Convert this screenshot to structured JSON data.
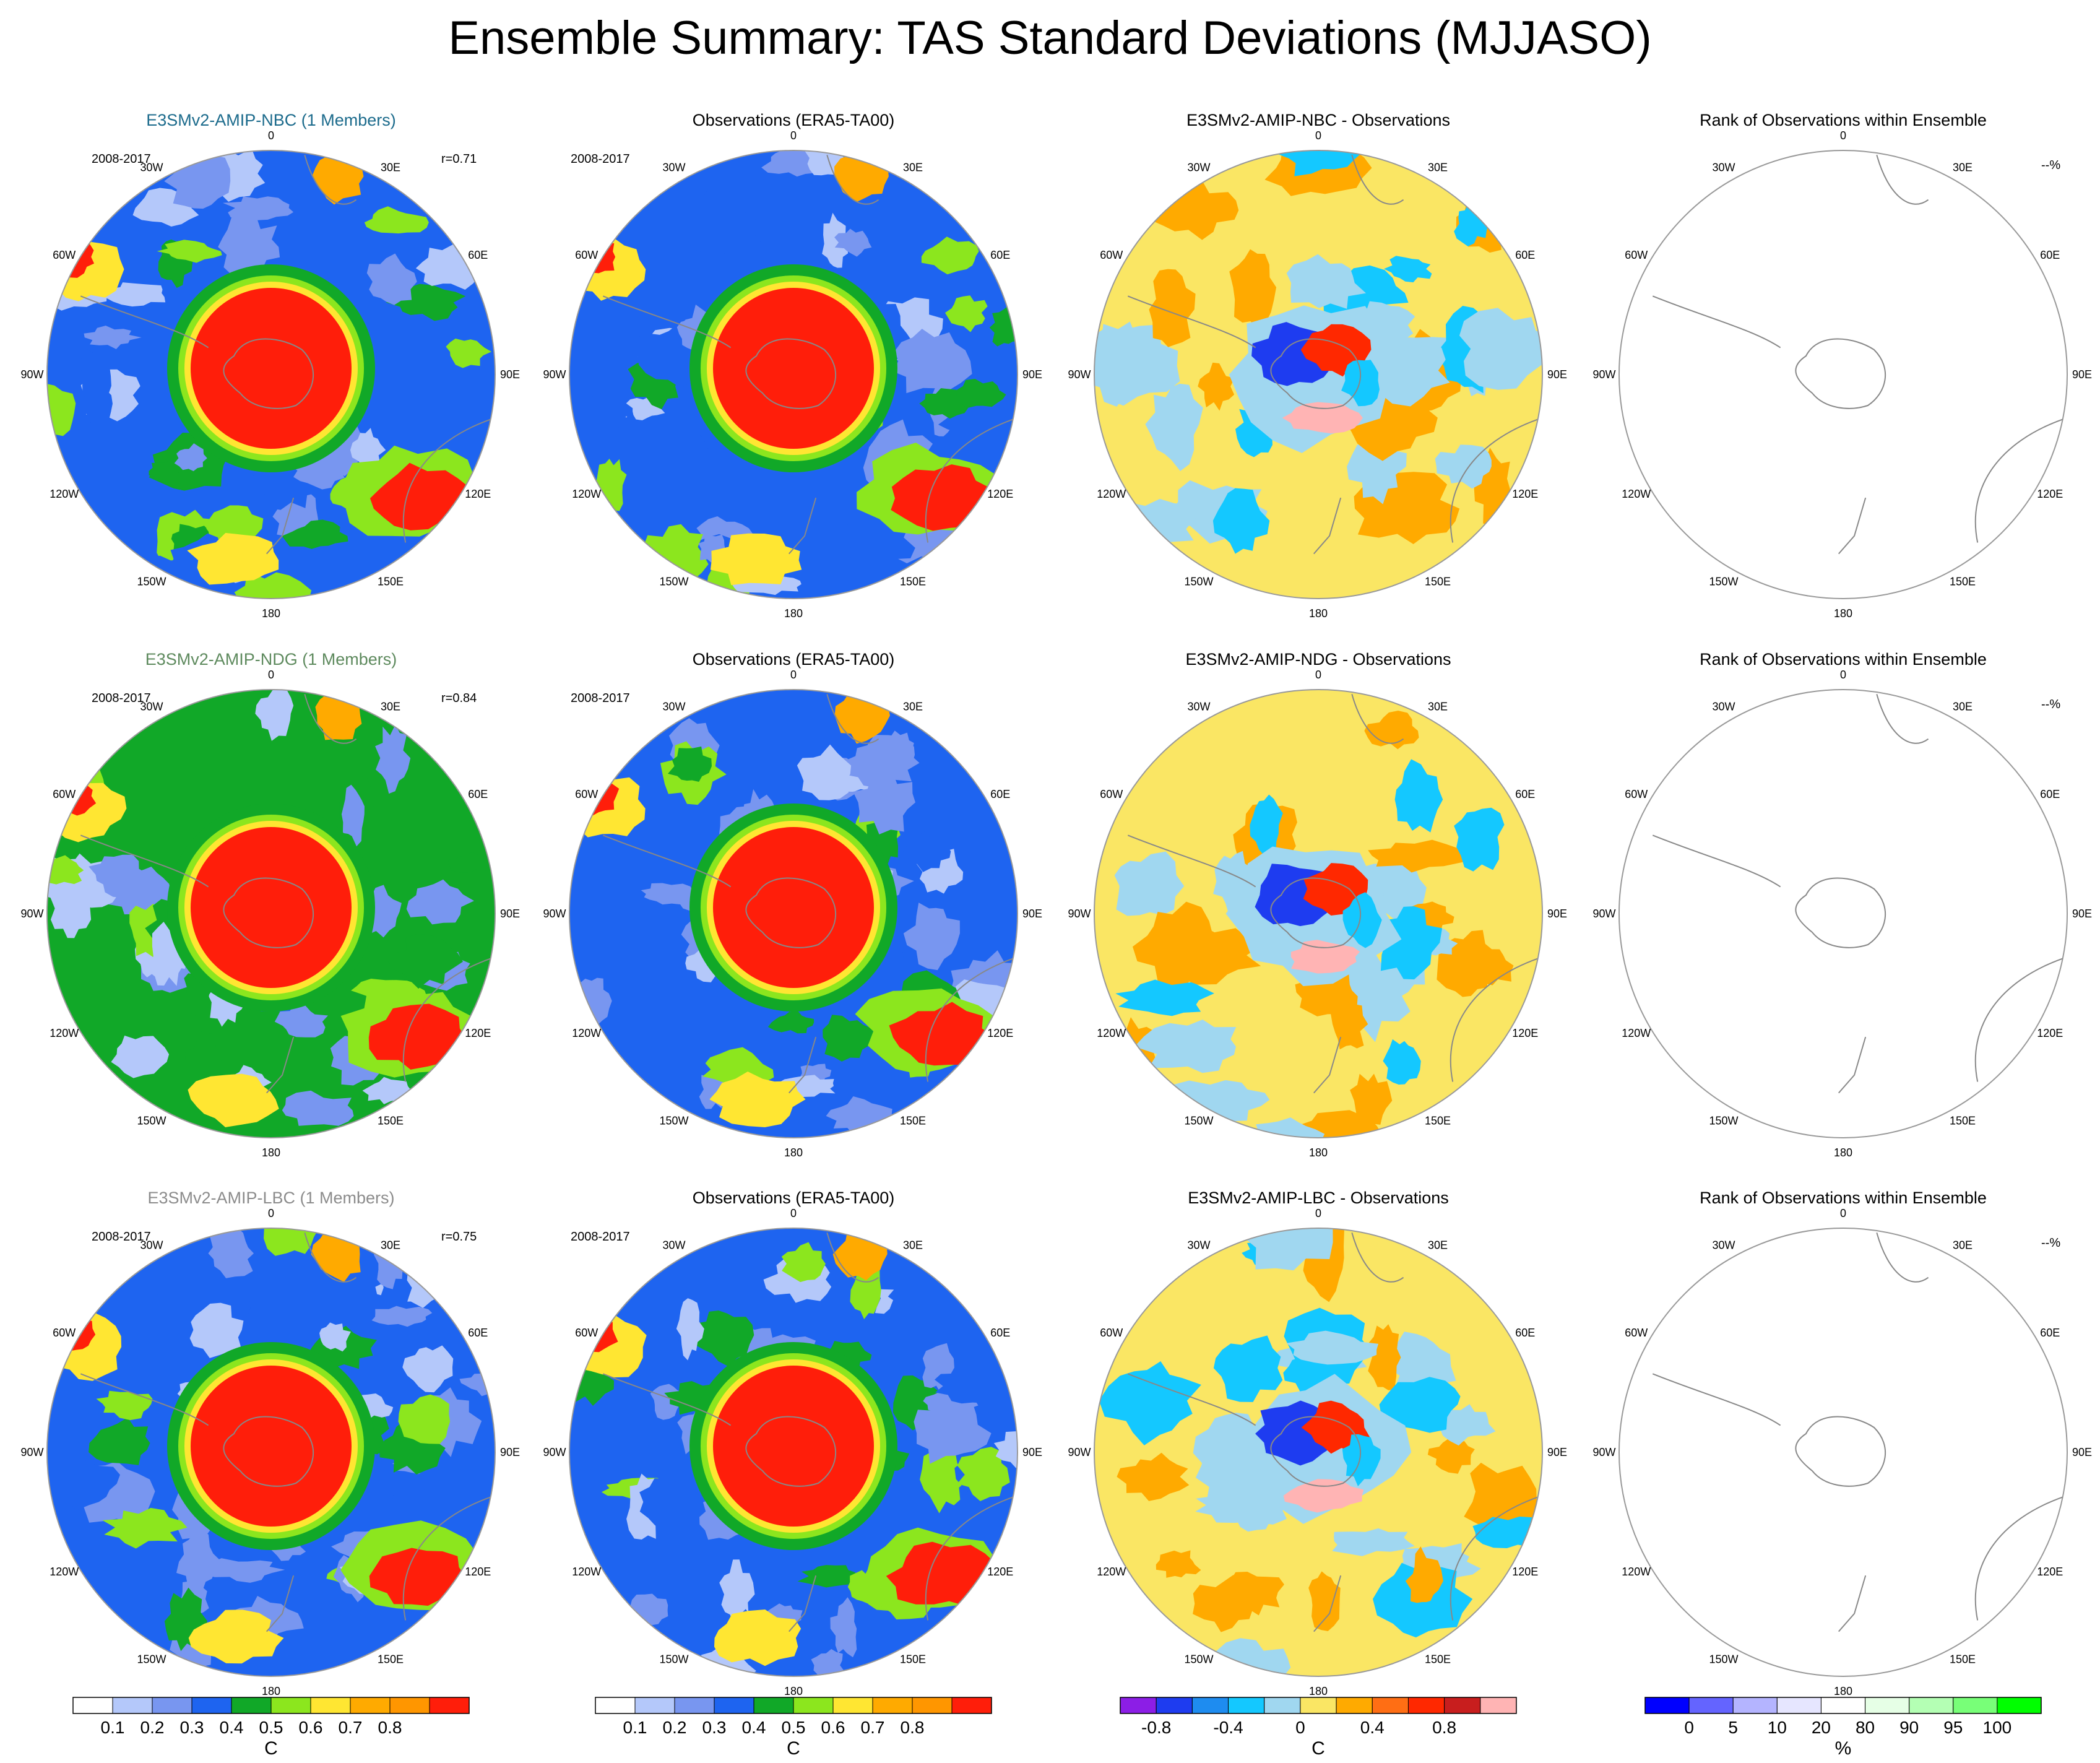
{
  "title": "Ensemble Summary: TAS Standard Deviations (MJJASO)",
  "colors": {
    "ocean_sd": [
      "#ffffff",
      "#b4c8fa",
      "#7896f0",
      "#1e64f0",
      "#11a828",
      "#8ce61e",
      "#ffe632",
      "#ffaa00",
      "#ff9600",
      "#ff1e0a"
    ],
    "diff": [
      "#8c1ee6",
      "#1e3cf0",
      "#1e8cf0",
      "#14c8ff",
      "#a0d7f0",
      "#fae664",
      "#ffaa00",
      "#ff6e14",
      "#ff2800",
      "#c81e1e",
      "#ffb4b4"
    ],
    "rank": [
      "#0000ff",
      "#6464ff",
      "#b4b4ff",
      "#e6e6ff",
      "#ffffff",
      "#e6ffe6",
      "#b4ffb4",
      "#78ff78",
      "#00ff00"
    ]
  },
  "rows": [
    {
      "model": "E3SMv2-AMIP-NBC (1 Members)",
      "model_color": "#1c6b8c",
      "period": "2008-2017",
      "r": "r=0.71",
      "obs_title": "Observations (ERA5-TA00)",
      "obs_period": "2008-2017",
      "diff_title": "E3SMv2-AMIP-NBC - Observations",
      "rank_title": "Rank of Observations within Ensemble",
      "rank_label": "--%"
    },
    {
      "model": "E3SMv2-AMIP-NDG (1 Members)",
      "model_color": "#5e8a5e",
      "period": "2008-2017",
      "r": "r=0.84",
      "obs_title": "Observations (ERA5-TA00)",
      "obs_period": "2008-2017",
      "diff_title": "E3SMv2-AMIP-NDG - Observations",
      "rank_title": "Rank of Observations within Ensemble",
      "rank_label": "--%"
    },
    {
      "model": "E3SMv2-AMIP-LBC (1 Members)",
      "model_color": "#8c8c8c",
      "period": "2008-2017",
      "r": "r=0.75",
      "obs_title": "Observations (ERA5-TA00)",
      "obs_period": "2008-2017",
      "diff_title": "E3SMv2-AMIP-LBC - Observations",
      "rank_title": "Rank of Observations within Ensemble",
      "rank_label": "--%"
    }
  ],
  "lon_labels": [
    "0",
    "30E",
    "60E",
    "90E",
    "120E",
    "150E",
    "180",
    "150W",
    "120W",
    "90W",
    "60W",
    "30W"
  ],
  "chart_data": [
    {
      "type": "heatmap",
      "name": "sd_colorbar_model",
      "unit": "C",
      "levels": [
        0.1,
        0.2,
        0.3,
        0.4,
        0.5,
        0.6,
        0.7,
        0.8
      ],
      "tick_labels": [
        "0.1",
        "0.2",
        "0.3",
        "0.4",
        "0.5",
        "0.6",
        "0.7",
        "0.8"
      ]
    },
    {
      "type": "heatmap",
      "name": "sd_colorbar_obs",
      "unit": "C",
      "levels": [
        0.1,
        0.2,
        0.3,
        0.4,
        0.5,
        0.6,
        0.7,
        0.8
      ],
      "tick_labels": [
        "0.1",
        "0.2",
        "0.3",
        "0.4",
        "0.5",
        "0.6",
        "0.7",
        "0.8"
      ]
    },
    {
      "type": "heatmap",
      "name": "diff_colorbar",
      "unit": "C",
      "levels": [
        -0.8,
        -0.6,
        -0.4,
        -0.2,
        0,
        0.2,
        0.4,
        0.6,
        0.8,
        1.0
      ],
      "tick_labels": [
        "-0.8",
        "-0.4",
        "0",
        "0.4",
        "0.8"
      ],
      "tick_values": [
        -0.8,
        -0.4,
        0,
        0.4,
        0.8
      ]
    },
    {
      "type": "heatmap",
      "name": "rank_colorbar",
      "unit": "%",
      "levels": [
        0,
        5,
        10,
        20,
        80,
        90,
        95,
        100
      ],
      "tick_labels": [
        "0",
        "5",
        "10",
        "20",
        "80",
        "90",
        "95",
        "100"
      ]
    }
  ]
}
